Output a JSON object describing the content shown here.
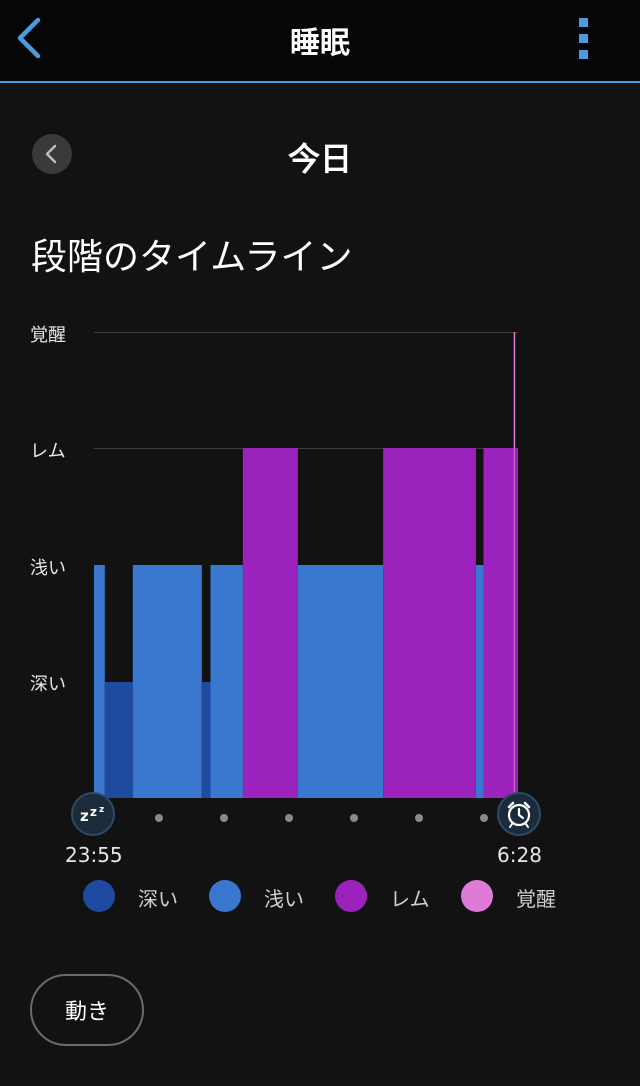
{
  "header": {
    "title": "睡眠"
  },
  "date_nav": {
    "label": "今日"
  },
  "section": {
    "title": "段階のタイムライン"
  },
  "colors": {
    "deep": "#1e4aa0",
    "light": "#3a78d0",
    "rem": "#9b22bc",
    "awake": "#df7ad6",
    "accent": "#4a9be0"
  },
  "chart_data": {
    "type": "area",
    "levels": [
      "深い",
      "浅い",
      "レム",
      "覚醒"
    ],
    "start_time": "23:55",
    "end_time": "6:28",
    "segments": [
      {
        "stage": "浅い",
        "start": "23:55",
        "end": "00:05"
      },
      {
        "stage": "深い",
        "start": "00:05",
        "end": "00:31"
      },
      {
        "stage": "浅い",
        "start": "00:31",
        "end": "01:35"
      },
      {
        "stage": "深い",
        "start": "01:35",
        "end": "01:43"
      },
      {
        "stage": "浅い",
        "start": "01:43",
        "end": "02:13"
      },
      {
        "stage": "レム",
        "start": "02:13",
        "end": "03:04"
      },
      {
        "stage": "浅い",
        "start": "03:04",
        "end": "04:23"
      },
      {
        "stage": "レム",
        "start": "04:23",
        "end": "05:49"
      },
      {
        "stage": "浅い",
        "start": "05:49",
        "end": "05:56"
      },
      {
        "stage": "レム",
        "start": "05:56",
        "end": "06:24"
      },
      {
        "stage": "覚醒",
        "start": "06:24",
        "end": "06:25"
      },
      {
        "stage": "レム",
        "start": "06:25",
        "end": "06:28"
      }
    ]
  },
  "legend": [
    {
      "label": "深い",
      "color": "#1e4aa0"
    },
    {
      "label": "浅い",
      "color": "#3a78d0"
    },
    {
      "label": "レム",
      "color": "#9b22bc"
    },
    {
      "label": "覚醒",
      "color": "#df7ad6"
    }
  ],
  "footer": {
    "movement_button": "動き"
  }
}
